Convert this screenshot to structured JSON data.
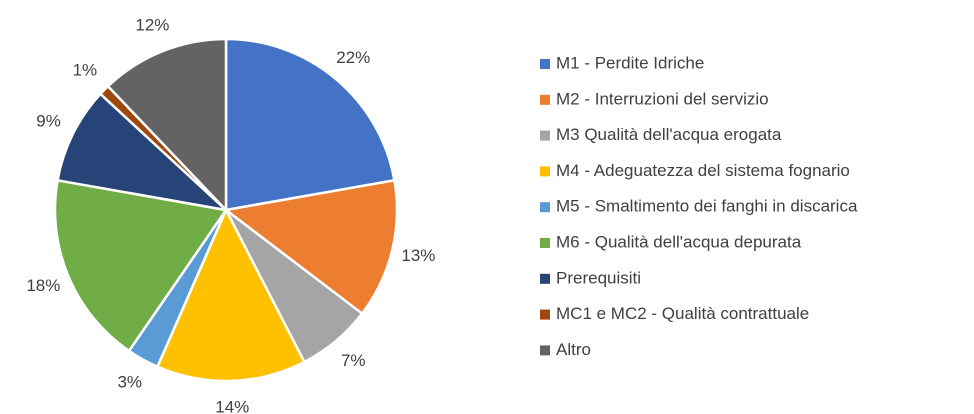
{
  "chart_data": {
    "type": "pie",
    "categories": [
      "M1 - Perdite Idriche",
      "M2 - Interruzioni del servizio",
      "M3 Qualità dell'acqua erogata",
      "M4 - Adeguatezza del sistema fognario",
      "M5 - Smaltimento dei fanghi in discarica",
      "M6 - Qualità dell'acqua depurata",
      "Prerequisiti",
      "MC1 e MC2 - Qualità contrattuale",
      "Altro"
    ],
    "values": [
      22,
      13,
      7,
      14,
      3,
      18,
      9,
      1,
      12
    ],
    "value_labels": [
      "22%",
      "13%",
      "7%",
      "14%",
      "3%",
      "18%",
      "9%",
      "1%",
      "12%"
    ],
    "colors": [
      "#4472c4",
      "#ed7d31",
      "#a5a5a5",
      "#ffc000",
      "#5b9bd5",
      "#70ad47",
      "#264478",
      "#9e480e",
      "#636363"
    ],
    "legend": "right"
  }
}
